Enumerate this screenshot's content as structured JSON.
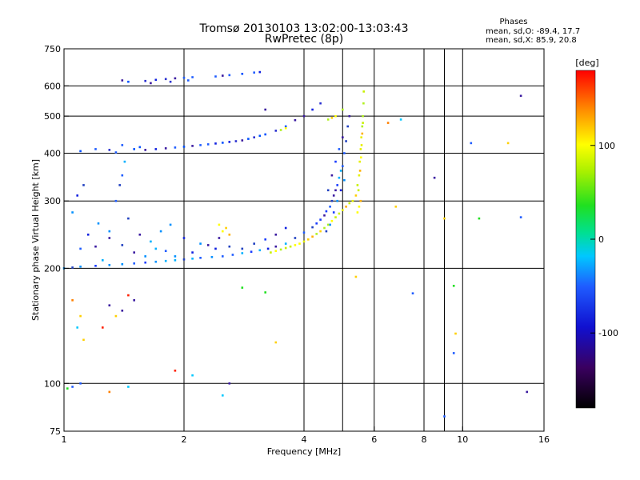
{
  "chart_data": {
    "type": "scatter",
    "title": "Tromsø 20130103 13:02:00-13:03:43",
    "subtitle": "RwPretec (8p)",
    "stats": {
      "heading": "Phases",
      "line1": "mean, sd,O: -89.4, 17.7",
      "line2": "mean, sd,X:  85.9, 20.8"
    },
    "xlabel": "Frequency [MHz]",
    "ylabel": "Stationary phase Virtual Height [km]",
    "x_scale": "log",
    "y_scale": "log",
    "xlim": [
      1,
      16
    ],
    "ylim": [
      75,
      750
    ],
    "x_ticks": [
      {
        "v": 1,
        "label": "1"
      },
      {
        "v": 2,
        "label": "2"
      },
      {
        "v": 4,
        "label": "4"
      },
      {
        "v": 6,
        "label": "6"
      },
      {
        "v": 8,
        "label": "8"
      },
      {
        "v": 10,
        "label": "10"
      },
      {
        "v": 16,
        "label": "16"
      }
    ],
    "x_grid": [
      1,
      2,
      4,
      5,
      6,
      8,
      9,
      10
    ],
    "y_ticks": [
      {
        "v": 75,
        "label": "75"
      },
      {
        "v": 100,
        "label": "100"
      },
      {
        "v": 200,
        "label": "200"
      },
      {
        "v": 300,
        "label": "300"
      },
      {
        "v": 400,
        "label": "400"
      },
      {
        "v": 500,
        "label": "500"
      },
      {
        "v": 600,
        "label": "600"
      },
      {
        "v": 750,
        "label": "750"
      }
    ],
    "y_grid": [
      100,
      200,
      300,
      400,
      500,
      600
    ],
    "grid": true,
    "colorbar": {
      "label": "[deg]",
      "range": [
        -180,
        180
      ],
      "ticks": [
        {
          "v": 100,
          "label": "100"
        },
        {
          "v": 0,
          "label": "0"
        },
        {
          "v": -100,
          "label": "-100"
        }
      ]
    },
    "series": [
      {
        "kind": "o_lower",
        "points": [
          [
            1.0,
            200
          ],
          [
            1.05,
            201
          ],
          [
            1.1,
            202
          ],
          [
            1.2,
            203
          ],
          [
            1.3,
            204
          ],
          [
            1.4,
            205
          ],
          [
            1.5,
            206
          ],
          [
            1.6,
            207
          ],
          [
            1.7,
            208
          ],
          [
            1.8,
            209
          ],
          [
            1.9,
            210
          ],
          [
            2.0,
            211
          ],
          [
            2.1,
            212
          ],
          [
            2.2,
            213
          ],
          [
            2.35,
            214
          ],
          [
            2.5,
            215
          ],
          [
            2.65,
            217
          ],
          [
            2.8,
            219
          ],
          [
            2.95,
            221
          ],
          [
            3.1,
            223
          ],
          [
            3.25,
            225
          ],
          [
            3.4,
            228
          ],
          [
            3.6,
            232
          ],
          [
            3.8,
            240
          ],
          [
            4.0,
            248
          ],
          [
            4.2,
            256
          ],
          [
            4.4,
            268
          ],
          [
            4.55,
            282
          ],
          [
            4.7,
            300
          ],
          [
            4.8,
            320
          ],
          [
            4.9,
            345
          ],
          [
            5.0,
            370
          ],
          [
            5.05,
            400
          ],
          [
            5.1,
            430
          ],
          [
            5.15,
            470
          ],
          [
            5.2,
            500
          ],
          [
            4.85,
            330
          ],
          [
            4.75,
            310
          ],
          [
            4.95,
            360
          ],
          [
            4.65,
            290
          ],
          [
            4.5,
            275
          ],
          [
            4.3,
            262
          ],
          [
            1.25,
            210
          ],
          [
            1.4,
            230
          ],
          [
            1.55,
            245
          ],
          [
            1.7,
            225
          ],
          [
            1.85,
            260
          ],
          [
            2.0,
            240
          ],
          [
            2.2,
            232
          ],
          [
            2.4,
            225
          ],
          [
            1.3,
            250
          ],
          [
            1.45,
            270
          ],
          [
            1.6,
            215
          ],
          [
            1.8,
            222
          ],
          [
            2.6,
            228
          ],
          [
            2.8,
            225
          ],
          [
            3.0,
            232
          ],
          [
            3.2,
            238
          ],
          [
            3.4,
            245
          ],
          [
            3.6,
            255
          ],
          [
            1.1,
            225
          ],
          [
            1.15,
            245
          ],
          [
            1.05,
            280
          ],
          [
            1.08,
            310
          ],
          [
            1.12,
            330
          ],
          [
            1.35,
            300
          ],
          [
            1.38,
            330
          ],
          [
            1.4,
            350
          ],
          [
            1.42,
            380
          ],
          [
            1.3,
            240
          ],
          [
            1.5,
            220
          ],
          [
            1.65,
            235
          ],
          [
            1.75,
            250
          ],
          [
            1.9,
            215
          ],
          [
            2.1,
            220
          ],
          [
            2.3,
            230
          ],
          [
            2.45,
            240
          ],
          [
            1.2,
            228
          ],
          [
            1.22,
            262
          ],
          [
            4.6,
            320
          ],
          [
            4.7,
            350
          ],
          [
            4.8,
            380
          ],
          [
            4.9,
            410
          ],
          [
            5.0,
            440
          ],
          [
            4.75,
            280
          ],
          [
            4.85,
            300
          ],
          [
            4.95,
            320
          ],
          [
            5.05,
            340
          ],
          [
            4.65,
            260
          ],
          [
            4.55,
            250
          ]
        ]
      },
      {
        "kind": "o_upper",
        "points": [
          [
            1.1,
            405
          ],
          [
            1.2,
            410
          ],
          [
            1.3,
            408
          ],
          [
            1.35,
            402
          ],
          [
            1.5,
            410
          ],
          [
            1.6,
            408
          ],
          [
            1.7,
            410
          ],
          [
            1.8,
            412
          ],
          [
            1.9,
            414
          ],
          [
            2.0,
            416
          ],
          [
            2.1,
            418
          ],
          [
            2.2,
            420
          ],
          [
            2.4,
            424
          ],
          [
            2.5,
            426
          ],
          [
            2.6,
            428
          ],
          [
            2.7,
            430
          ],
          [
            2.8,
            432
          ],
          [
            2.9,
            436
          ],
          [
            3.0,
            440
          ],
          [
            3.2,
            448
          ],
          [
            3.4,
            458
          ],
          [
            3.6,
            470
          ],
          [
            3.8,
            488
          ],
          [
            4.0,
            500
          ],
          [
            4.2,
            520
          ],
          [
            4.4,
            540
          ],
          [
            1.4,
            420
          ],
          [
            1.55,
            415
          ],
          [
            2.3,
            422
          ],
          [
            3.1,
            444
          ],
          [
            1.4,
            620
          ],
          [
            1.45,
            615
          ],
          [
            1.6,
            618
          ],
          [
            1.7,
            622
          ],
          [
            1.8,
            625
          ],
          [
            1.9,
            628
          ],
          [
            2.0,
            630
          ],
          [
            2.1,
            632
          ],
          [
            2.4,
            635
          ],
          [
            2.5,
            638
          ],
          [
            2.6,
            640
          ],
          [
            2.8,
            645
          ],
          [
            3.0,
            650
          ],
          [
            3.1,
            652
          ],
          [
            1.65,
            610
          ],
          [
            1.85,
            615
          ],
          [
            2.05,
            620
          ]
        ]
      },
      {
        "kind": "x_trace",
        "points": [
          [
            3.3,
            220
          ],
          [
            3.4,
            222
          ],
          [
            3.5,
            224
          ],
          [
            3.6,
            226
          ],
          [
            3.7,
            228
          ],
          [
            3.8,
            230
          ],
          [
            3.9,
            232
          ],
          [
            4.0,
            235
          ],
          [
            4.1,
            238
          ],
          [
            4.2,
            242
          ],
          [
            4.3,
            246
          ],
          [
            4.4,
            250
          ],
          [
            4.5,
            255
          ],
          [
            4.6,
            260
          ],
          [
            4.7,
            266
          ],
          [
            4.8,
            272
          ],
          [
            4.9,
            278
          ],
          [
            5.0,
            284
          ],
          [
            5.1,
            290
          ],
          [
            5.2,
            296
          ],
          [
            5.3,
            300
          ],
          [
            5.4,
            310
          ],
          [
            5.45,
            330
          ],
          [
            5.5,
            350
          ],
          [
            5.52,
            380
          ],
          [
            5.55,
            410
          ],
          [
            5.57,
            440
          ],
          [
            5.6,
            470
          ],
          [
            5.62,
            500
          ],
          [
            5.64,
            540
          ],
          [
            5.65,
            580
          ],
          [
            5.5,
            290
          ],
          [
            5.48,
            320
          ],
          [
            5.53,
            360
          ],
          [
            5.56,
            390
          ],
          [
            5.58,
            420
          ],
          [
            5.6,
            450
          ],
          [
            5.62,
            480
          ],
          [
            5.55,
            300
          ],
          [
            5.45,
            280
          ],
          [
            2.5,
            250
          ],
          [
            2.55,
            255
          ],
          [
            2.6,
            245
          ],
          [
            2.45,
            260
          ],
          [
            3.5,
            460
          ],
          [
            3.6,
            465
          ],
          [
            4.6,
            490
          ],
          [
            4.8,
            500
          ],
          [
            4.7,
            495
          ],
          [
            5.0,
            520
          ]
        ]
      },
      {
        "kind": "scatter_misc",
        "points": [
          [
            1.02,
            97
          ],
          [
            1.05,
            98
          ],
          [
            1.1,
            100
          ],
          [
            1.3,
            95
          ],
          [
            1.45,
            98
          ],
          [
            1.9,
            108
          ],
          [
            2.1,
            105
          ],
          [
            2.5,
            93
          ],
          [
            2.8,
            178
          ],
          [
            3.2,
            173
          ],
          [
            5.4,
            190
          ],
          [
            7.5,
            172
          ],
          [
            9.0,
            82
          ],
          [
            9.5,
            120
          ],
          [
            9.6,
            135
          ],
          [
            9.5,
            180
          ],
          [
            11.0,
            270
          ],
          [
            10.5,
            425
          ],
          [
            13.0,
            425
          ],
          [
            14.0,
            565
          ],
          [
            14.5,
            95
          ],
          [
            14.0,
            272
          ],
          [
            9.0,
            270
          ],
          [
            8.5,
            345
          ],
          [
            6.5,
            480
          ],
          [
            7.0,
            490
          ],
          [
            6.8,
            290
          ],
          [
            3.4,
            128
          ],
          [
            3.2,
            520
          ],
          [
            2.6,
            100
          ],
          [
            1.08,
            140
          ],
          [
            1.1,
            150
          ],
          [
            1.12,
            130
          ],
          [
            1.05,
            165
          ],
          [
            1.3,
            160
          ],
          [
            1.35,
            150
          ],
          [
            1.4,
            155
          ],
          [
            1.45,
            170
          ],
          [
            1.5,
            165
          ],
          [
            1.25,
            140
          ]
        ]
      }
    ]
  }
}
